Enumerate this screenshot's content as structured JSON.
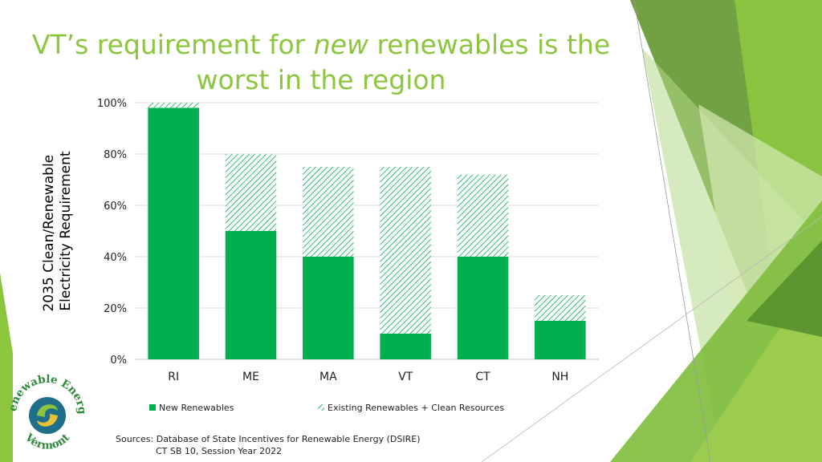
{
  "title": {
    "part1": "VT’s requirement for ",
    "emph": "new",
    "part2": " renewables is the",
    "line2": "worst in the region"
  },
  "sources": {
    "label": "Sources:",
    "line1": "Database of State Incentives for Renewable Energy (DSIRE)",
    "line2": "CT SB 10, Session Year 2022"
  },
  "logo": {
    "top_text": "Renewable Energy",
    "bottom_text": "Vermont"
  },
  "colors": {
    "title": "#8cc63f",
    "new_renewables": "#00b050",
    "existing_hatch": "#00b050",
    "decoration_dark": "#6a9c3a",
    "decoration_light": "#8cc63f"
  },
  "chart_data": {
    "type": "bar",
    "stacked": true,
    "categories": [
      "RI",
      "ME",
      "MA",
      "VT",
      "CT",
      "NH"
    ],
    "series": [
      {
        "name": "New Renewables",
        "values": [
          98,
          50,
          40,
          10,
          40,
          15
        ],
        "fill": "solid"
      },
      {
        "name": "Existing Renewables + Clean Resources",
        "values": [
          2,
          30,
          35,
          65,
          32,
          10
        ],
        "fill": "hatched"
      }
    ],
    "ylabel_lines": [
      "2035 Clean/Renewable",
      "Electricity Requirement"
    ],
    "ylim": [
      0,
      100
    ],
    "yticks": [
      0,
      20,
      40,
      60,
      80,
      100
    ],
    "ytick_labels": [
      "0%",
      "20%",
      "40%",
      "60%",
      "80%",
      "100%"
    ],
    "grid": true,
    "legend_position": "bottom"
  }
}
